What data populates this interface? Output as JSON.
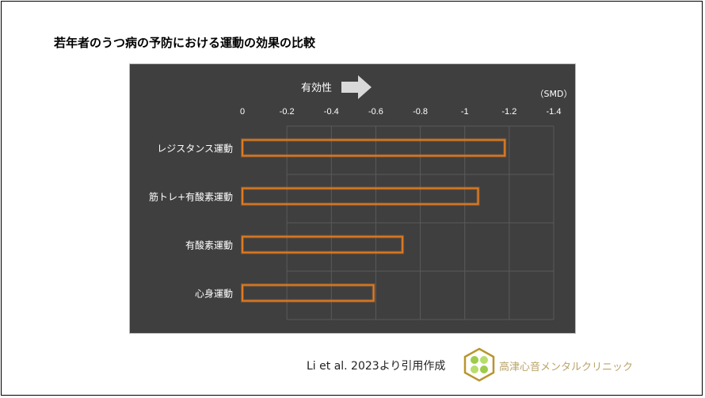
{
  "slide": {
    "title": "若年者のうつ病の予防における運動の効果の比較",
    "citation": "Li et al. 2023より引用作成",
    "clinic_name": "高津心音メンタルクリニック"
  },
  "chart_data": {
    "type": "bar",
    "orientation": "horizontal",
    "annotation": "有効性",
    "unit_label": "（SMD）",
    "categories": [
      "レジスタンス運動",
      "筋トレ+有酸素運動",
      "有酸素運動",
      "心身運動"
    ],
    "values": [
      -1.18,
      -1.06,
      -0.72,
      -0.59
    ],
    "xlim": [
      0,
      -1.4
    ],
    "xticks": [
      0,
      -0.2,
      -0.4,
      -0.6,
      -0.8,
      -1,
      -1.2,
      -1.4
    ],
    "xtick_labels": [
      "0",
      "-0.2",
      "-0.4",
      "-0.6",
      "-0.8",
      "-1",
      "-1.2",
      "-1.4"
    ],
    "axis_position": "top",
    "grid": true,
    "colors": {
      "background": "#3f3f3f",
      "bar_outline": "#e07b22",
      "grid": "#5a5a5a",
      "text": "#ffffff",
      "arrow": "#d9d9d9"
    }
  }
}
